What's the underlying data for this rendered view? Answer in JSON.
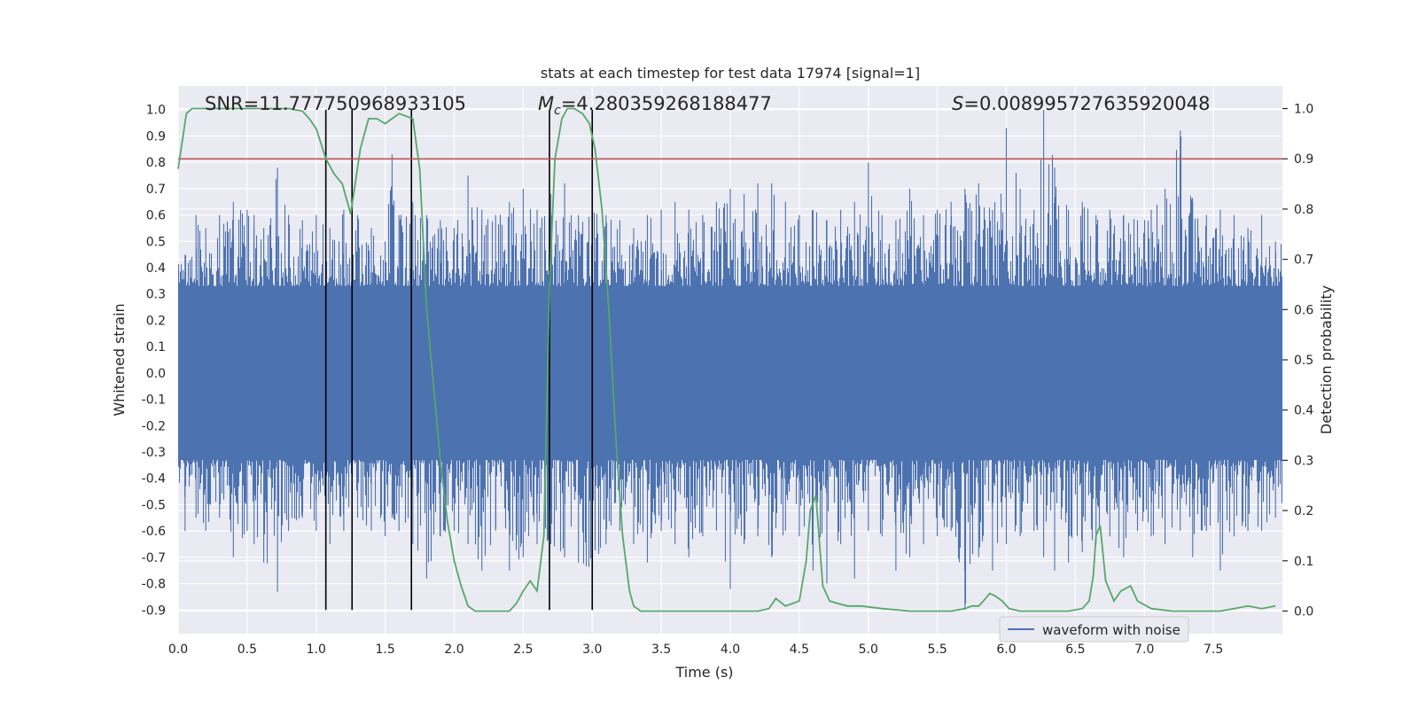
{
  "chart_data": {
    "type": "line",
    "title": "stats at each timestep for test data 17974 [signal=1]",
    "xlabel": "Time (s)",
    "ylabel": "Whitened strain",
    "ylabel_right": "Detection probability",
    "xlim": [
      0.0,
      8.0
    ],
    "ylim": [
      -0.99,
      1.09
    ],
    "ylim_right": [
      -0.045,
      1.045
    ],
    "x_ticks": [
      "0.0",
      "0.5",
      "1.0",
      "1.5",
      "2.0",
      "2.5",
      "3.0",
      "3.5",
      "4.0",
      "4.5",
      "5.0",
      "5.5",
      "6.0",
      "6.5",
      "7.0",
      "7.5"
    ],
    "y_ticks": [
      "1.0",
      "0.9",
      "0.8",
      "0.7",
      "0.6",
      "0.5",
      "0.4",
      "0.3",
      "0.2",
      "0.1",
      "0.0",
      "-0.1",
      "-0.2",
      "-0.3",
      "-0.4",
      "-0.5",
      "-0.6",
      "-0.7",
      "-0.8",
      "-0.9"
    ],
    "y_ticks_right": [
      "1.0",
      "0.9",
      "0.8",
      "0.7",
      "0.6",
      "0.5",
      "0.4",
      "0.3",
      "0.2",
      "0.1",
      "0.0"
    ],
    "grid": true,
    "legend": {
      "position": "lower-right",
      "entries": [
        "waveform with noise"
      ]
    },
    "annotations": {
      "snr": "SNR=11.777750968933105",
      "mc_symbol": "M",
      "mc_sub": "c",
      "mc_value": "=4.280359268188477",
      "s_symbol": "S",
      "s_value": "=0.008995727635920048"
    },
    "colors": {
      "waveform": "#4c72b0",
      "probability": "#55a868",
      "threshold": "#c44e52",
      "markers": "#000000",
      "axes_bg": "#eaeaf2"
    },
    "threshold_right": 0.9,
    "vertical_markers_x": [
      1.07,
      1.26,
      1.69,
      2.69,
      3.0
    ],
    "series": [
      {
        "name": "waveform with noise",
        "kind": "noise-envelope",
        "band_low": -0.33,
        "band_high": 0.33,
        "peaks_x": [
          0.05,
          0.13,
          0.2,
          0.3,
          0.4,
          0.5,
          0.55,
          0.62,
          0.72,
          0.8,
          0.9,
          1.0,
          1.1,
          1.2,
          1.3,
          1.4,
          1.5,
          1.55,
          1.6,
          1.7,
          1.8,
          1.9,
          2.0,
          2.1,
          2.2,
          2.3,
          2.4,
          2.5,
          2.6,
          2.7,
          2.8,
          2.9,
          3.0,
          3.1,
          3.2,
          3.3,
          3.4,
          3.5,
          3.6,
          3.7,
          3.8,
          3.9,
          4.0,
          4.1,
          4.2,
          4.3,
          4.4,
          4.5,
          4.6,
          4.7,
          4.8,
          4.9,
          5.0,
          5.1,
          5.2,
          5.3,
          5.4,
          5.5,
          5.6,
          5.7,
          5.8,
          5.9,
          6.0,
          6.1,
          6.2,
          6.27,
          6.35,
          6.45,
          6.55,
          6.65,
          6.75,
          6.85,
          6.95,
          7.05,
          7.15,
          7.26,
          7.35,
          7.45,
          7.55,
          7.65,
          7.75,
          7.85,
          7.95
        ],
        "peaks_hi": [
          0.45,
          0.6,
          0.55,
          0.6,
          0.65,
          0.62,
          0.6,
          0.55,
          0.78,
          0.6,
          0.58,
          0.6,
          0.55,
          0.62,
          0.6,
          0.55,
          0.5,
          0.83,
          0.6,
          0.65,
          0.6,
          0.58,
          0.55,
          0.75,
          0.62,
          0.6,
          0.65,
          0.7,
          0.62,
          0.68,
          0.72,
          0.6,
          0.62,
          0.6,
          0.58,
          0.55,
          0.6,
          0.62,
          0.65,
          0.62,
          0.6,
          0.65,
          0.7,
          0.68,
          0.72,
          0.72,
          0.65,
          0.6,
          0.62,
          0.58,
          0.62,
          0.65,
          0.8,
          0.6,
          0.58,
          0.7,
          0.6,
          0.62,
          0.65,
          0.7,
          0.72,
          0.62,
          0.93,
          0.7,
          0.62,
          1.0,
          0.78,
          0.62,
          0.65,
          0.6,
          0.62,
          0.6,
          0.58,
          0.62,
          0.7,
          0.92,
          0.65,
          0.6,
          0.62,
          0.6,
          0.55,
          0.6,
          0.5
        ],
        "peaks_lo": [
          -0.6,
          -0.55,
          -0.6,
          -0.55,
          -0.7,
          -0.6,
          -0.65,
          -0.72,
          -0.83,
          -0.6,
          -0.55,
          -0.6,
          -0.65,
          -0.6,
          -0.55,
          -0.6,
          -0.62,
          -0.55,
          -0.6,
          -0.65,
          -0.78,
          -0.62,
          -0.6,
          -0.65,
          -0.75,
          -0.6,
          -0.75,
          -0.7,
          -0.65,
          -0.65,
          -0.7,
          -0.72,
          -0.75,
          -0.65,
          -0.6,
          -0.65,
          -0.72,
          -0.6,
          -0.65,
          -0.7,
          -0.62,
          -0.6,
          -0.82,
          -0.65,
          -0.62,
          -0.7,
          -0.6,
          -0.62,
          -0.75,
          -0.8,
          -0.65,
          -0.78,
          -0.6,
          -0.62,
          -0.75,
          -0.7,
          -0.65,
          -0.62,
          -0.6,
          -0.9,
          -0.7,
          -0.75,
          -0.65,
          -0.62,
          -0.6,
          -0.7,
          -0.75,
          -0.72,
          -0.68,
          -0.65,
          -0.62,
          -0.7,
          -0.6,
          -0.62,
          -0.65,
          -0.6,
          -0.7,
          -0.6,
          -0.75,
          -0.62,
          -0.6,
          -0.6,
          -0.55
        ]
      },
      {
        "name": "detection probability",
        "axis": "right",
        "x": [
          0.0,
          0.06,
          0.1,
          0.2,
          0.3,
          0.5,
          0.7,
          0.8,
          0.9,
          0.95,
          1.0,
          1.07,
          1.13,
          1.19,
          1.25,
          1.32,
          1.38,
          1.44,
          1.5,
          1.6,
          1.7,
          1.75,
          1.8,
          1.85,
          1.9,
          1.95,
          2.0,
          2.05,
          2.1,
          2.15,
          2.2,
          2.3,
          2.4,
          2.45,
          2.5,
          2.55,
          2.6,
          2.65,
          2.69,
          2.73,
          2.78,
          2.82,
          2.87,
          2.93,
          2.98,
          3.02,
          3.07,
          3.12,
          3.17,
          3.22,
          3.27,
          3.3,
          3.35,
          3.45,
          3.6,
          3.75,
          3.9,
          4.0,
          4.1,
          4.2,
          4.28,
          4.33,
          4.4,
          4.45,
          4.5,
          4.55,
          4.58,
          4.62,
          4.67,
          4.72,
          4.78,
          4.85,
          4.95,
          5.1,
          5.3,
          5.5,
          5.6,
          5.7,
          5.75,
          5.8,
          5.85,
          5.88,
          5.92,
          5.97,
          6.02,
          6.1,
          6.3,
          6.45,
          6.55,
          6.6,
          6.63,
          6.65,
          6.68,
          6.72,
          6.78,
          6.83,
          6.9,
          6.95,
          7.05,
          7.2,
          7.4,
          7.55,
          7.65,
          7.75,
          7.85,
          7.95
        ],
        "y": [
          0.88,
          0.99,
          1.0,
          1.0,
          1.0,
          1.0,
          1.0,
          1.0,
          0.995,
          0.98,
          0.96,
          0.9,
          0.87,
          0.85,
          0.79,
          0.92,
          0.98,
          0.98,
          0.97,
          0.99,
          0.98,
          0.88,
          0.6,
          0.45,
          0.3,
          0.18,
          0.1,
          0.05,
          0.01,
          0.0,
          0.0,
          0.0,
          0.0,
          0.015,
          0.04,
          0.06,
          0.04,
          0.15,
          0.65,
          0.9,
          0.98,
          1.0,
          1.0,
          0.99,
          0.97,
          0.92,
          0.8,
          0.6,
          0.35,
          0.15,
          0.04,
          0.01,
          0.0,
          0.0,
          0.0,
          0.0,
          0.0,
          0.0,
          0.0,
          0.0,
          0.005,
          0.025,
          0.01,
          0.015,
          0.02,
          0.1,
          0.2,
          0.23,
          0.05,
          0.02,
          0.015,
          0.01,
          0.01,
          0.005,
          0.0,
          0.0,
          0.0,
          0.005,
          0.01,
          0.01,
          0.025,
          0.035,
          0.03,
          0.02,
          0.005,
          0.0,
          0.0,
          0.0,
          0.005,
          0.02,
          0.07,
          0.15,
          0.17,
          0.06,
          0.02,
          0.04,
          0.05,
          0.02,
          0.005,
          0.0,
          0.0,
          0.0,
          0.005,
          0.01,
          0.005,
          0.01
        ]
      }
    ]
  }
}
